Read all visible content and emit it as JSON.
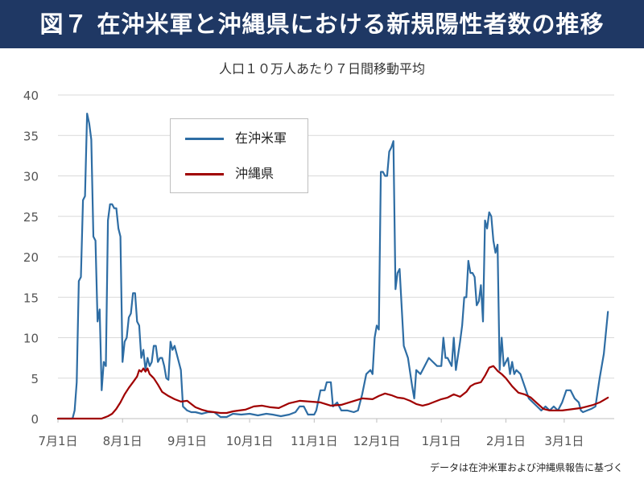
{
  "header": {
    "title": "図７ 在沖米軍と沖縄県における新規陽性者数の推移"
  },
  "footnote": "データは在沖米軍および沖縄県報告に基づく",
  "chart_data": {
    "type": "line",
    "title": "人口１０万人あたり７日間移動平均",
    "xlabel": "",
    "ylabel": "",
    "ylim": [
      0,
      40
    ],
    "yticks": [
      "0",
      "5",
      "10",
      "15",
      "20",
      "25",
      "30",
      "35",
      "40"
    ],
    "xlim": [
      "2021-07-01",
      "2022-03-25"
    ],
    "x_tick_labels": [
      "7月1日",
      "8月1日",
      "9月1日",
      "10月1日",
      "11月1日",
      "12月1日",
      "1月1日",
      "2月1日",
      "3月1日"
    ],
    "x_tick_dates": [
      "2021-07-01",
      "2021-08-01",
      "2021-09-01",
      "2021-10-01",
      "2021-11-01",
      "2021-12-01",
      "2022-01-01",
      "2022-02-01",
      "2022-03-01"
    ],
    "grid": "horizontal",
    "legend_position": "upper-left",
    "series": [
      {
        "name": "在沖米軍",
        "color": "#2e6da4",
        "points": [
          [
            "2021-07-01",
            0
          ],
          [
            "2021-07-08",
            0
          ],
          [
            "2021-07-09",
            1
          ],
          [
            "2021-07-10",
            4.5
          ],
          [
            "2021-07-11",
            17
          ],
          [
            "2021-07-12",
            17.5
          ],
          [
            "2021-07-13",
            27
          ],
          [
            "2021-07-14",
            27.5
          ],
          [
            "2021-07-15",
            37.7
          ],
          [
            "2021-07-16",
            36.5
          ],
          [
            "2021-07-17",
            34.5
          ],
          [
            "2021-07-18",
            22.5
          ],
          [
            "2021-07-19",
            22
          ],
          [
            "2021-07-20",
            12
          ],
          [
            "2021-07-21",
            13.5
          ],
          [
            "2021-07-22",
            3.5
          ],
          [
            "2021-07-23",
            7
          ],
          [
            "2021-07-24",
            6.5
          ],
          [
            "2021-07-25",
            24.5
          ],
          [
            "2021-07-26",
            26.5
          ],
          [
            "2021-07-27",
            26.5
          ],
          [
            "2021-07-28",
            26
          ],
          [
            "2021-07-29",
            26
          ],
          [
            "2021-07-30",
            23.5
          ],
          [
            "2021-07-31",
            22.5
          ],
          [
            "2021-08-01",
            7
          ],
          [
            "2021-08-02",
            9.5
          ],
          [
            "2021-08-03",
            10
          ],
          [
            "2021-08-04",
            12.5
          ],
          [
            "2021-08-05",
            13
          ],
          [
            "2021-08-06",
            15.5
          ],
          [
            "2021-08-07",
            15.5
          ],
          [
            "2021-08-08",
            12
          ],
          [
            "2021-08-09",
            11.5
          ],
          [
            "2021-08-10",
            7.5
          ],
          [
            "2021-08-11",
            8.5
          ],
          [
            "2021-08-12",
            6
          ],
          [
            "2021-08-13",
            7.5
          ],
          [
            "2021-08-14",
            6.5
          ],
          [
            "2021-08-15",
            7
          ],
          [
            "2021-08-16",
            9
          ],
          [
            "2021-08-17",
            9
          ],
          [
            "2021-08-18",
            7
          ],
          [
            "2021-08-19",
            7.5
          ],
          [
            "2021-08-20",
            7.5
          ],
          [
            "2021-08-21",
            6.5
          ],
          [
            "2021-08-22",
            5
          ],
          [
            "2021-08-23",
            4.8
          ],
          [
            "2021-08-24",
            9.5
          ],
          [
            "2021-08-25",
            8.5
          ],
          [
            "2021-08-26",
            9
          ],
          [
            "2021-08-27",
            8
          ],
          [
            "2021-08-28",
            7
          ],
          [
            "2021-08-29",
            6
          ],
          [
            "2021-08-30",
            1.5
          ],
          [
            "2021-09-01",
            1
          ],
          [
            "2021-09-03",
            0.8
          ],
          [
            "2021-09-05",
            0.8
          ],
          [
            "2021-09-08",
            0.6
          ],
          [
            "2021-09-11",
            0.8
          ],
          [
            "2021-09-14",
            0.8
          ],
          [
            "2021-09-17",
            0.2
          ],
          [
            "2021-09-20",
            0.2
          ],
          [
            "2021-09-23",
            0.6
          ],
          [
            "2021-09-27",
            0.5
          ],
          [
            "2021-10-01",
            0.6
          ],
          [
            "2021-10-05",
            0.4
          ],
          [
            "2021-10-09",
            0.6
          ],
          [
            "2021-10-12",
            0.5
          ],
          [
            "2021-10-16",
            0.3
          ],
          [
            "2021-10-20",
            0.5
          ],
          [
            "2021-10-23",
            0.8
          ],
          [
            "2021-10-25",
            1.5
          ],
          [
            "2021-10-27",
            1.5
          ],
          [
            "2021-10-29",
            0.5
          ],
          [
            "2021-11-01",
            0.5
          ],
          [
            "2021-11-02",
            1
          ],
          [
            "2021-11-04",
            3.5
          ],
          [
            "2021-11-06",
            3.5
          ],
          [
            "2021-11-07",
            4.5
          ],
          [
            "2021-11-09",
            4.5
          ],
          [
            "2021-11-10",
            1.5
          ],
          [
            "2021-11-12",
            2
          ],
          [
            "2021-11-14",
            1
          ],
          [
            "2021-11-17",
            1
          ],
          [
            "2021-11-20",
            0.8
          ],
          [
            "2021-11-22",
            1
          ],
          [
            "2021-11-24",
            3
          ],
          [
            "2021-11-26",
            5.5
          ],
          [
            "2021-11-28",
            6
          ],
          [
            "2021-11-29",
            5.5
          ],
          [
            "2021-11-30",
            10
          ],
          [
            "2021-12-01",
            11.5
          ],
          [
            "2021-12-02",
            11
          ],
          [
            "2021-12-03",
            30.5
          ],
          [
            "2021-12-04",
            30.5
          ],
          [
            "2021-12-05",
            30
          ],
          [
            "2021-12-06",
            30
          ],
          [
            "2021-12-07",
            33
          ],
          [
            "2021-12-08",
            33.5
          ],
          [
            "2021-12-09",
            34.3
          ],
          [
            "2021-12-10",
            16
          ],
          [
            "2021-12-11",
            18
          ],
          [
            "2021-12-12",
            18.5
          ],
          [
            "2021-12-14",
            9
          ],
          [
            "2021-12-16",
            7.5
          ],
          [
            "2021-12-18",
            4
          ],
          [
            "2021-12-19",
            2.5
          ],
          [
            "2021-12-20",
            6
          ],
          [
            "2021-12-22",
            5.5
          ],
          [
            "2021-12-24",
            6.5
          ],
          [
            "2021-12-26",
            7.5
          ],
          [
            "2021-12-28",
            7
          ],
          [
            "2021-12-30",
            6.5
          ],
          [
            "2022-01-01",
            6.5
          ],
          [
            "2022-01-02",
            10
          ],
          [
            "2022-01-03",
            7.5
          ],
          [
            "2022-01-04",
            7.5
          ],
          [
            "2022-01-05",
            7
          ],
          [
            "2022-01-06",
            6.5
          ],
          [
            "2022-01-07",
            10
          ],
          [
            "2022-01-08",
            6
          ],
          [
            "2022-01-10",
            9.5
          ],
          [
            "2022-01-11",
            11.5
          ],
          [
            "2022-01-12",
            15
          ],
          [
            "2022-01-13",
            15
          ],
          [
            "2022-01-14",
            19.5
          ],
          [
            "2022-01-15",
            18
          ],
          [
            "2022-01-16",
            18
          ],
          [
            "2022-01-17",
            17.5
          ],
          [
            "2022-01-18",
            14
          ],
          [
            "2022-01-19",
            14.5
          ],
          [
            "2022-01-20",
            16.5
          ],
          [
            "2022-01-21",
            12
          ],
          [
            "2022-01-22",
            24.5
          ],
          [
            "2022-01-23",
            23.5
          ],
          [
            "2022-01-24",
            25.5
          ],
          [
            "2022-01-25",
            25
          ],
          [
            "2022-01-26",
            22
          ],
          [
            "2022-01-27",
            20.5
          ],
          [
            "2022-01-28",
            21.5
          ],
          [
            "2022-01-29",
            6
          ],
          [
            "2022-01-30",
            10
          ],
          [
            "2022-01-31",
            6.5
          ],
          [
            "2022-02-01",
            7
          ],
          [
            "2022-02-02",
            7.5
          ],
          [
            "2022-02-03",
            5.5
          ],
          [
            "2022-02-04",
            7
          ],
          [
            "2022-02-05",
            5.5
          ],
          [
            "2022-02-06",
            6
          ],
          [
            "2022-02-08",
            5.5
          ],
          [
            "2022-02-10",
            4
          ],
          [
            "2022-02-12",
            2.5
          ],
          [
            "2022-02-14",
            2
          ],
          [
            "2022-02-16",
            1.5
          ],
          [
            "2022-02-18",
            1
          ],
          [
            "2022-02-20",
            1.5
          ],
          [
            "2022-02-22",
            1
          ],
          [
            "2022-02-24",
            1.5
          ],
          [
            "2022-02-26",
            1
          ],
          [
            "2022-02-28",
            2
          ],
          [
            "2022-03-02",
            3.5
          ],
          [
            "2022-03-04",
            3.5
          ],
          [
            "2022-03-06",
            2.5
          ],
          [
            "2022-03-08",
            2
          ],
          [
            "2022-03-09",
            1
          ],
          [
            "2022-03-10",
            0.8
          ],
          [
            "2022-03-12",
            1
          ],
          [
            "2022-03-14",
            1.2
          ],
          [
            "2022-03-16",
            1.5
          ],
          [
            "2022-03-18",
            5
          ],
          [
            "2022-03-20",
            8
          ],
          [
            "2022-03-22",
            13.2
          ]
        ]
      },
      {
        "name": "沖縄県",
        "color": "#a00000",
        "points": [
          [
            "2021-07-01",
            0
          ],
          [
            "2021-07-22",
            0
          ],
          [
            "2021-07-25",
            0.3
          ],
          [
            "2021-07-27",
            0.6
          ],
          [
            "2021-07-29",
            1.2
          ],
          [
            "2021-07-31",
            2
          ],
          [
            "2021-08-02",
            3
          ],
          [
            "2021-08-04",
            3.8
          ],
          [
            "2021-08-06",
            4.5
          ],
          [
            "2021-08-08",
            5.2
          ],
          [
            "2021-08-09",
            6
          ],
          [
            "2021-08-10",
            5.8
          ],
          [
            "2021-08-11",
            6.2
          ],
          [
            "2021-08-12",
            5.8
          ],
          [
            "2021-08-13",
            6.2
          ],
          [
            "2021-08-14",
            5.5
          ],
          [
            "2021-08-16",
            5
          ],
          [
            "2021-08-18",
            4.2
          ],
          [
            "2021-08-20",
            3.3
          ],
          [
            "2021-08-23",
            2.8
          ],
          [
            "2021-08-26",
            2.4
          ],
          [
            "2021-08-29",
            2.1
          ],
          [
            "2021-09-01",
            2.2
          ],
          [
            "2021-09-03",
            1.8
          ],
          [
            "2021-09-05",
            1.4
          ],
          [
            "2021-09-08",
            1.1
          ],
          [
            "2021-09-11",
            0.9
          ],
          [
            "2021-09-14",
            0.8
          ],
          [
            "2021-09-17",
            0.7
          ],
          [
            "2021-09-20",
            0.7
          ],
          [
            "2021-09-23",
            0.9
          ],
          [
            "2021-09-26",
            1
          ],
          [
            "2021-09-29",
            1.1
          ],
          [
            "2021-10-03",
            1.5
          ],
          [
            "2021-10-07",
            1.6
          ],
          [
            "2021-10-11",
            1.4
          ],
          [
            "2021-10-15",
            1.3
          ],
          [
            "2021-10-20",
            1.9
          ],
          [
            "2021-10-25",
            2.2
          ],
          [
            "2021-10-30",
            2.1
          ],
          [
            "2021-11-04",
            2
          ],
          [
            "2021-11-09",
            1.6
          ],
          [
            "2021-11-14",
            1.7
          ],
          [
            "2021-11-19",
            2.1
          ],
          [
            "2021-11-24",
            2.5
          ],
          [
            "2021-11-29",
            2.4
          ],
          [
            "2021-12-02",
            2.8
          ],
          [
            "2021-12-05",
            3.1
          ],
          [
            "2021-12-08",
            2.9
          ],
          [
            "2021-12-11",
            2.6
          ],
          [
            "2021-12-14",
            2.5
          ],
          [
            "2021-12-17",
            2.2
          ],
          [
            "2021-12-20",
            1.8
          ],
          [
            "2021-12-23",
            1.6
          ],
          [
            "2021-12-26",
            1.8
          ],
          [
            "2021-12-29",
            2.1
          ],
          [
            "2022-01-01",
            2.4
          ],
          [
            "2022-01-04",
            2.6
          ],
          [
            "2022-01-07",
            3
          ],
          [
            "2022-01-10",
            2.7
          ],
          [
            "2022-01-13",
            3.3
          ],
          [
            "2022-01-15",
            4
          ],
          [
            "2022-01-17",
            4.3
          ],
          [
            "2022-01-20",
            4.5
          ],
          [
            "2022-01-22",
            5.3
          ],
          [
            "2022-01-24",
            6.3
          ],
          [
            "2022-01-26",
            6.5
          ],
          [
            "2022-01-28",
            5.9
          ],
          [
            "2022-01-30",
            5.5
          ],
          [
            "2022-02-01",
            5
          ],
          [
            "2022-02-04",
            4
          ],
          [
            "2022-02-07",
            3.2
          ],
          [
            "2022-02-10",
            3
          ],
          [
            "2022-02-13",
            2.6
          ],
          [
            "2022-02-16",
            1.9
          ],
          [
            "2022-02-19",
            1.2
          ],
          [
            "2022-02-22",
            1
          ],
          [
            "2022-02-25",
            1
          ],
          [
            "2022-02-28",
            1
          ],
          [
            "2022-03-03",
            1.1
          ],
          [
            "2022-03-06",
            1.2
          ],
          [
            "2022-03-09",
            1.3
          ],
          [
            "2022-03-12",
            1.5
          ],
          [
            "2022-03-15",
            1.7
          ],
          [
            "2022-03-18",
            2
          ],
          [
            "2022-03-20",
            2.3
          ],
          [
            "2022-03-22",
            2.6
          ]
        ]
      }
    ]
  }
}
